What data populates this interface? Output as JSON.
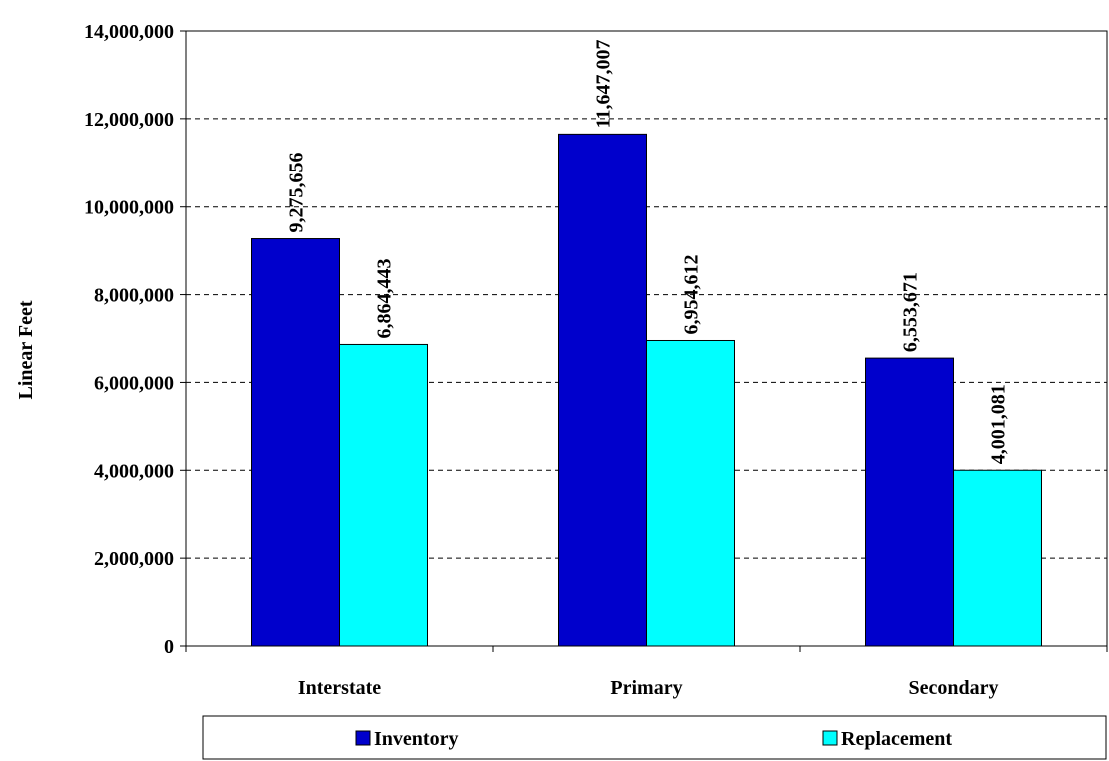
{
  "chart_data": {
    "type": "bar",
    "categories": [
      "Interstate",
      "Primary",
      "Secondary"
    ],
    "series": [
      {
        "name": "Inventory",
        "values": [
          9275656,
          11647007,
          6553671
        ],
        "labels": [
          "9,275,656",
          "11,647,007",
          "6,553,671"
        ],
        "color": "#0000CC"
      },
      {
        "name": "Replacement",
        "values": [
          6864443,
          6954612,
          4001081
        ],
        "labels": [
          "6,864,443",
          "6,954,612",
          "4,001,081"
        ],
        "color": "#00FFFF"
      }
    ],
    "ylabel": "Linear Feet",
    "xlabel": "",
    "ylim": [
      0,
      14000000
    ],
    "yticks": [
      0,
      2000000,
      4000000,
      6000000,
      8000000,
      10000000,
      12000000,
      14000000
    ],
    "ytick_labels": [
      "0",
      "2,000,000",
      "4,000,000",
      "6,000,000",
      "8,000,000",
      "10,000,000",
      "12,000,000",
      "14,000,000"
    ],
    "grid": "horizontal dashed",
    "legend_position": "bottom"
  }
}
